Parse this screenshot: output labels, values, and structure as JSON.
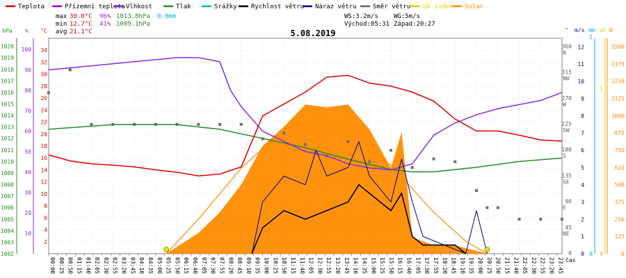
{
  "chart_data": {
    "type": "line",
    "title": "5.08.2019",
    "legend": [
      {
        "name": "Teplota",
        "color": "#e00000"
      },
      {
        "name": "Přízemní teplota",
        "color": "#a000c0"
      },
      {
        "name": "Vlhkost",
        "color": "#8a2be2"
      },
      {
        "name": "Tlak",
        "color": "#2a8a2a"
      },
      {
        "name": "Srážky",
        "color": "#00b0d8"
      },
      {
        "name": "Rychlost větru",
        "color": "#000000"
      },
      {
        "name": "Náraz větru",
        "color": "#00008b"
      },
      {
        "name": "Směr větru",
        "color": "#606060"
      },
      {
        "name": "UV index",
        "color": "#e0d000"
      },
      {
        "name": "Solar",
        "color": "#ff8c00"
      }
    ],
    "stats": {
      "max": {
        "label": "max",
        "temp": "30.0°C",
        "hum": "96%",
        "press": "1013.8hPa",
        "rain": "0.0mm"
      },
      "min": {
        "label": "min",
        "temp": "12.7°C",
        "hum": "41%",
        "press": "1009.1hPa"
      },
      "avg": {
        "label": "avg",
        "temp": "21.1°C"
      }
    },
    "info": {
      "ws": "WS:3.2m/s",
      "wg": "WG:5m/s",
      "sunrise": "Východ:05:31",
      "sunset": "Západ:20:27"
    },
    "axes": {
      "hpa": {
        "unit": "hPa",
        "ticks": [
          "1020",
          "1019",
          "1018",
          "1017",
          "1016",
          "1015",
          "1014",
          "1013",
          "1012",
          "1011",
          "1010",
          "1009",
          "1008",
          "1007",
          "1006",
          "1005",
          "1004",
          "1003",
          "1002"
        ]
      },
      "hum": {
        "unit": "%",
        "ticks": [
          "100",
          "90",
          "80",
          "70",
          "60",
          "50",
          "40",
          "30",
          "20",
          "10"
        ]
      },
      "temp": {
        "unit": "°C",
        "ticks": [
          "34",
          "32",
          "30",
          "28",
          "26",
          "24",
          "22",
          "20",
          "18",
          "16",
          "14",
          "12",
          "10",
          "8",
          "6",
          "4",
          "2"
        ]
      },
      "dir": {
        "unit": "°",
        "ticks": [
          "360",
          "315",
          "270",
          "225",
          "180",
          "135",
          "90",
          "45",
          "0"
        ],
        "labels": [
          "N",
          "NW",
          "W",
          "SW",
          "S",
          "SE",
          "E",
          "NE",
          ""
        ]
      },
      "ms": {
        "unit": "m/s",
        "ticks": [
          "12",
          "11",
          "10",
          "9",
          "8",
          "7",
          "6",
          "5",
          "4",
          "3",
          "2",
          "1",
          "0"
        ]
      },
      "mm": {
        "unit": "mm",
        "ticks": [
          "1",
          "0"
        ]
      },
      "uv": {
        "unit": "UV",
        "ticks": [
          "1",
          "0"
        ]
      },
      "w": {
        "unit": "W",
        "ticks": [
          "1500",
          "1375",
          "1250",
          "1125",
          "1000",
          "875",
          "750",
          "625",
          "500",
          "375",
          "250",
          "125",
          "0"
        ]
      },
      "time_label": "čas",
      "time_ticks": [
        "00:00",
        "00:25",
        "00:50",
        "01:15",
        "01:40",
        "02:05",
        "02:30",
        "02:55",
        "03:20",
        "03:45",
        "04:10",
        "04:35",
        "05:00",
        "05:25",
        "05:50",
        "06:15",
        "06:40",
        "07:05",
        "07:30",
        "07:55",
        "08:20",
        "08:45",
        "09:10",
        "09:35",
        "10:00",
        "10:25",
        "10:50",
        "11:15",
        "11:40",
        "12:05",
        "12:30",
        "12:55",
        "13:20",
        "13:45",
        "14:10",
        "14:35",
        "15:00",
        "15:25",
        "15:50",
        "16:15",
        "16:40",
        "17:05",
        "17:30",
        "17:55",
        "18:20",
        "18:45",
        "19:10",
        "19:35",
        "20:00",
        "20:25",
        "20:50",
        "21:15",
        "21:40",
        "22:05",
        "22:30",
        "22:55",
        "23:20",
        "23:45"
      ]
    },
    "temperature": [
      [
        0,
        16.5
      ],
      [
        1,
        15.5
      ],
      [
        2,
        15.0
      ],
      [
        3,
        14.8
      ],
      [
        4,
        14.5
      ],
      [
        5,
        14.0
      ],
      [
        6,
        13.6
      ],
      [
        7,
        13.0
      ],
      [
        8,
        13.3
      ],
      [
        9,
        14.5
      ],
      [
        10,
        23.0
      ],
      [
        11,
        25.0
      ],
      [
        12,
        27.0
      ],
      [
        13,
        29.5
      ],
      [
        14,
        29.8
      ],
      [
        15,
        28.5
      ],
      [
        16,
        28.0
      ],
      [
        17,
        27.0
      ],
      [
        18,
        25.5
      ],
      [
        19,
        22.5
      ],
      [
        20,
        20.5
      ],
      [
        21,
        20.5
      ],
      [
        22,
        19.8
      ],
      [
        23,
        19.0
      ],
      [
        24,
        18.8
      ]
    ],
    "humidity": [
      [
        0,
        90
      ],
      [
        1,
        91
      ],
      [
        2,
        92
      ],
      [
        3,
        93
      ],
      [
        4,
        94
      ],
      [
        5,
        95
      ],
      [
        6,
        96
      ],
      [
        7,
        96
      ],
      [
        8,
        94
      ],
      [
        8.5,
        80
      ],
      [
        9,
        72
      ],
      [
        10,
        60
      ],
      [
        11,
        55
      ],
      [
        12,
        50
      ],
      [
        13,
        48
      ],
      [
        14,
        44
      ],
      [
        15,
        42
      ],
      [
        16,
        41
      ],
      [
        17,
        44
      ],
      [
        18,
        58
      ],
      [
        19,
        64
      ],
      [
        20,
        68
      ],
      [
        21,
        71
      ],
      [
        22,
        73
      ],
      [
        23,
        75
      ],
      [
        24,
        79
      ]
    ],
    "pressure": [
      [
        0,
        1012.8
      ],
      [
        3,
        1013.2
      ],
      [
        6,
        1013.2
      ],
      [
        8,
        1012.8
      ],
      [
        10,
        1012.0
      ],
      [
        12,
        1011.2
      ],
      [
        14,
        1010.2
      ],
      [
        16,
        1009.3
      ],
      [
        17,
        1009.1
      ],
      [
        18,
        1009.1
      ],
      [
        20,
        1009.5
      ],
      [
        22,
        1010.0
      ],
      [
        24,
        1010.3
      ]
    ],
    "solar": [
      [
        5.5,
        0
      ],
      [
        7,
        150
      ],
      [
        8,
        300
      ],
      [
        9,
        500
      ],
      [
        10,
        780
      ],
      [
        11,
        920
      ],
      [
        12,
        1080
      ],
      [
        13,
        1060
      ],
      [
        14,
        1080
      ],
      [
        15,
        900
      ],
      [
        16,
        620
      ],
      [
        16.5,
        880
      ],
      [
        17,
        120
      ],
      [
        18,
        60
      ],
      [
        19,
        60
      ],
      [
        20,
        20
      ],
      [
        20.5,
        0
      ]
    ],
    "solar_clear": [
      [
        5.5,
        0
      ],
      [
        7,
        250
      ],
      [
        9,
        620
      ],
      [
        11,
        900
      ],
      [
        12.5,
        970
      ],
      [
        14,
        900
      ],
      [
        16,
        640
      ],
      [
        18,
        300
      ],
      [
        19.5,
        90
      ],
      [
        20.5,
        0
      ]
    ],
    "wind_speed": [
      [
        9.5,
        0
      ],
      [
        10,
        1.5
      ],
      [
        11,
        2.5
      ],
      [
        12,
        2.0
      ],
      [
        13,
        2.5
      ],
      [
        14,
        3.0
      ],
      [
        14.5,
        4.0
      ],
      [
        15,
        3.5
      ],
      [
        16,
        2.5
      ],
      [
        16.5,
        3.5
      ],
      [
        17,
        1.0
      ],
      [
        17.5,
        0.5
      ],
      [
        19,
        0.5
      ],
      [
        19.5,
        0
      ]
    ],
    "wind_gust": [
      [
        9.5,
        0
      ],
      [
        10,
        3.0
      ],
      [
        11,
        4.5
      ],
      [
        12,
        4.0
      ],
      [
        12.5,
        6.0
      ],
      [
        13,
        4.5
      ],
      [
        14,
        5.0
      ],
      [
        14.5,
        6.5
      ],
      [
        15,
        4.5
      ],
      [
        16,
        3.0
      ],
      [
        16.5,
        5.5
      ],
      [
        17,
        3.0
      ],
      [
        17.5,
        1.0
      ],
      [
        19.5,
        0
      ],
      [
        20,
        2.5
      ],
      [
        20.5,
        0
      ]
    ],
    "wind_dir": [
      [
        0,
        280
      ],
      [
        1,
        320
      ],
      [
        2,
        225
      ],
      [
        3,
        225
      ],
      [
        4,
        225
      ],
      [
        5,
        225
      ],
      [
        6,
        225
      ],
      [
        7,
        225
      ],
      [
        8,
        225
      ],
      [
        9,
        225
      ],
      [
        10,
        200
      ],
      [
        11,
        210
      ],
      [
        12,
        190
      ],
      [
        13,
        170
      ],
      [
        14,
        195
      ],
      [
        15,
        160
      ],
      [
        16,
        180
      ],
      [
        17,
        150
      ],
      [
        18,
        165
      ],
      [
        19,
        160
      ],
      [
        20,
        110
      ],
      [
        20.5,
        80
      ],
      [
        21,
        80
      ],
      [
        22,
        60
      ],
      [
        23,
        60
      ],
      [
        24,
        60
      ]
    ],
    "uv_points": [
      [
        5.5,
        0
      ],
      [
        20.5,
        0
      ]
    ]
  }
}
